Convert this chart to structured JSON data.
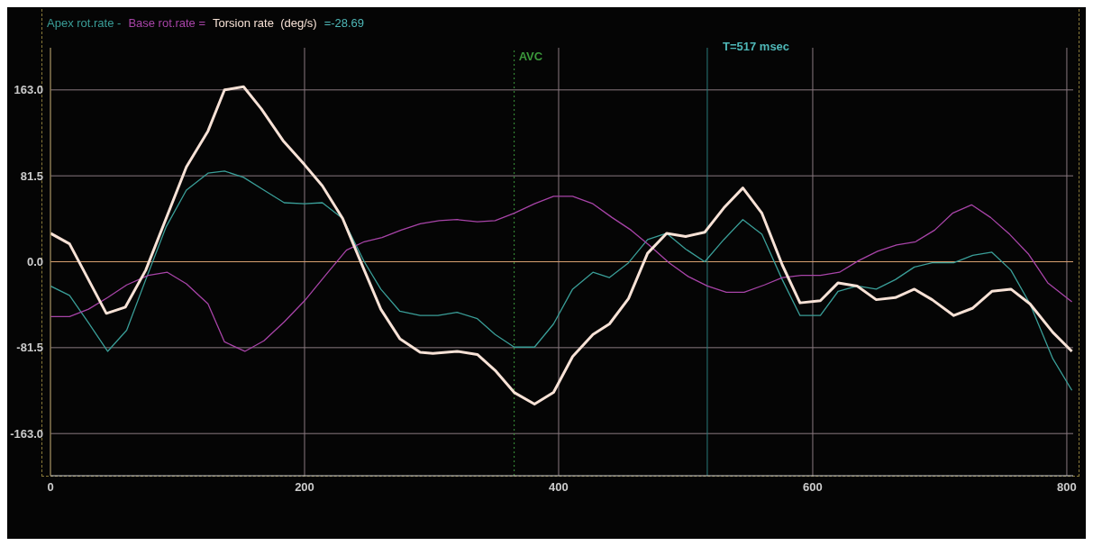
{
  "chart_data": {
    "type": "line",
    "series": [
      {
        "name": "Apex rot.rate -",
        "color": "#3a9e98",
        "x": [
          0,
          15,
          30,
          45,
          60,
          75,
          91,
          107,
          124,
          137,
          152,
          168,
          184,
          200,
          214,
          230,
          247,
          260,
          275,
          291,
          305,
          320,
          336,
          350,
          365,
          381,
          396,
          411,
          427,
          440,
          455,
          470,
          485,
          500,
          515,
          530,
          545,
          560,
          576,
          590,
          606,
          620,
          635,
          650,
          665,
          680,
          694,
          711,
          726,
          741,
          756,
          771,
          789,
          804
        ],
        "values": [
          -23,
          -32,
          -58,
          -85,
          -65,
          -17,
          33,
          68,
          84,
          86,
          80,
          68,
          56,
          55,
          56,
          41,
          0,
          -26,
          -47,
          -51,
          -51,
          -48,
          -54,
          -69,
          -81,
          -81,
          -59,
          -26,
          -10,
          -15,
          -1,
          21,
          27,
          12,
          0,
          21,
          40,
          26,
          -17,
          -51,
          -51,
          -28,
          -23,
          -26,
          -17,
          -5,
          -1,
          -1,
          6,
          9,
          -8,
          -40,
          -92,
          -122
        ]
      },
      {
        "name": "Base rot.rate =",
        "color": "#a844a8",
        "x": [
          0,
          15,
          30,
          45,
          60,
          77,
          92,
          107,
          124,
          137,
          153,
          168,
          184,
          200,
          217,
          233,
          247,
          261,
          276,
          291,
          306,
          320,
          336,
          350,
          365,
          381,
          396,
          411,
          427,
          442,
          457,
          472,
          487,
          502,
          517,
          532,
          546,
          562,
          576,
          591,
          606,
          621,
          636,
          651,
          666,
          681,
          696,
          710,
          725,
          740,
          755,
          770,
          785,
          804
        ],
        "values": [
          -52,
          -52,
          -45,
          -34,
          -22,
          -13,
          -10,
          -21,
          -40,
          -76,
          -85,
          -75,
          -57,
          -37,
          -12,
          11,
          19,
          23,
          30,
          36,
          39,
          40,
          38,
          39,
          46,
          55,
          62,
          62,
          55,
          42,
          30,
          15,
          -1,
          -14,
          -23,
          -29,
          -29,
          -22,
          -15,
          -13,
          -13,
          -10,
          1,
          10,
          16,
          19,
          30,
          46,
          54,
          42,
          26,
          7,
          -20,
          -38
        ]
      },
      {
        "name": "Torsion rate  (deg/s)",
        "color": "#f8e2d6",
        "x": [
          0,
          15,
          44,
          59,
          75,
          107,
          124,
          137,
          152,
          166,
          183,
          200,
          214,
          230,
          247,
          260,
          275,
          291,
          301,
          320,
          336,
          350,
          365,
          381,
          396,
          411,
          427,
          440,
          455,
          470,
          485,
          500,
          515,
          530,
          545,
          560,
          576,
          590,
          606,
          620,
          635,
          650,
          665,
          680,
          694,
          711,
          726,
          741,
          756,
          771,
          789,
          804
        ],
        "values": [
          27,
          17,
          -49,
          -43,
          -8,
          90,
          124,
          163,
          166,
          145,
          115,
          92,
          72,
          41,
          -8,
          -45,
          -73,
          -86,
          -87,
          -85,
          -88,
          -103,
          -124,
          -135,
          -124,
          -90,
          -69,
          -59,
          -35,
          8,
          27,
          24,
          28,
          51,
          70,
          46,
          -3,
          -39,
          -37,
          -20,
          -23,
          -36,
          -34,
          -26,
          -36,
          -51,
          -44,
          -28,
          -26,
          -40,
          -67,
          -85
        ]
      }
    ],
    "xlim": [
      0,
      805
    ],
    "xticks": [
      0,
      200,
      400,
      600,
      800
    ],
    "ylim": [
      -203,
      203
    ],
    "yticks": [
      {
        "value": 163,
        "label": "163.0"
      },
      {
        "value": 81.5,
        "label": "81.5"
      },
      {
        "value": 0,
        "label": "0.0"
      },
      {
        "value": -81.5,
        "label": "-81.5"
      },
      {
        "value": -163,
        "label": "-163.0"
      }
    ],
    "grid": true,
    "legend": "top left",
    "marker": "none",
    "line_style": "solid",
    "ref_lines": [
      {
        "axis": "y",
        "value": 0,
        "color": "#d8a070"
      },
      {
        "axis": "x",
        "value": 365,
        "label": "AVC",
        "color": "#3c9a3c",
        "line_style": "dotted"
      },
      {
        "axis": "x",
        "value": 517,
        "color": "#2a7c7c",
        "line_style": "solid"
      }
    ],
    "annotations": [
      "=-28.69",
      "T=517 msec"
    ]
  }
}
